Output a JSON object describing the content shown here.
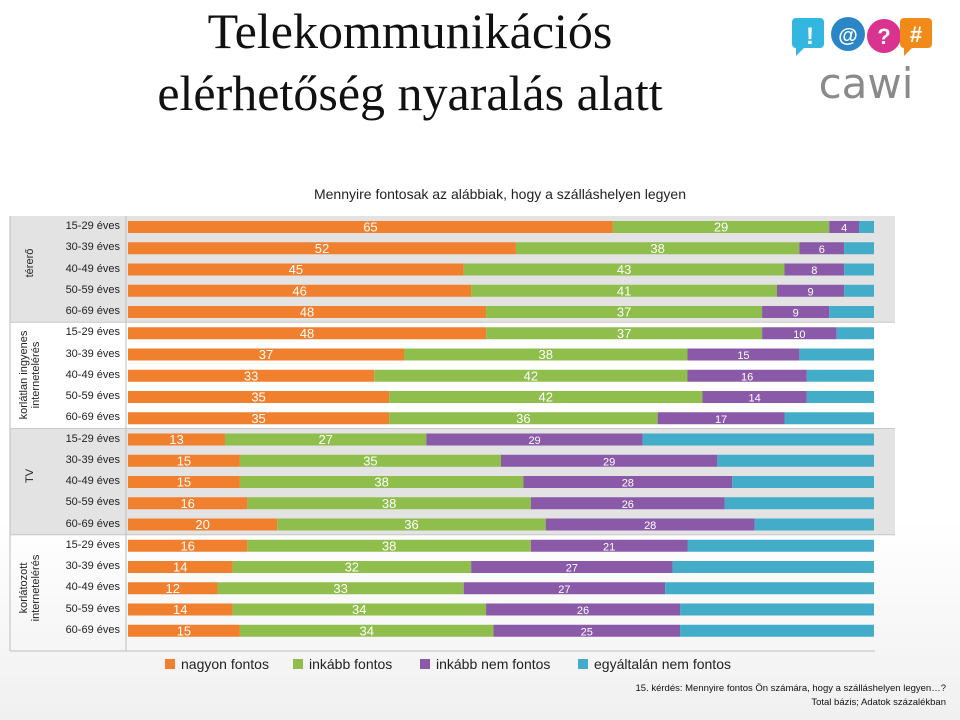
{
  "slide": {
    "title_line1": "Telekommunikációs",
    "title_line2": "elérhetőség nyaralás alatt",
    "logo_text": "cawi",
    "logo_symbols": [
      "!",
      "@",
      "?",
      "#"
    ],
    "logo_colors": [
      "#33b6e0",
      "#2b86c8",
      "#d9338f",
      "#f28a1a"
    ]
  },
  "footnote": {
    "line1": "15. kérdés: Mennyire fontos Ön számára, hogy a szálláshelyen legyen…?",
    "line2": "Total bázis; Adatok százalékban"
  },
  "chart_data": {
    "type": "bar",
    "orientation": "horizontal",
    "stacked": true,
    "title": "Mennyire fontosak az alábbiak, hogy a szálláshelyen legyen",
    "xlim": [
      0,
      100
    ],
    "legend_position": "bottom",
    "series_names": [
      "nagyon fontos",
      "inkább fontos",
      "inkább nem fontos",
      "egyáltalán nem fontos"
    ],
    "colors": [
      "#f07f2e",
      "#8fbe4c",
      "#8a5aa8",
      "#43acc8"
    ],
    "groups": [
      {
        "name": "térerő",
        "shaded": true,
        "rows": [
          {
            "label": "15-29 éves",
            "values": [
              65,
              29,
              4,
              2
            ]
          },
          {
            "label": "30-39 éves",
            "values": [
              52,
              38,
              6,
              4
            ]
          },
          {
            "label": "40-49 éves",
            "values": [
              45,
              43,
              8,
              4
            ]
          },
          {
            "label": "50-59 éves",
            "values": [
              46,
              41,
              9,
              4
            ]
          },
          {
            "label": "60-69 éves",
            "values": [
              48,
              37,
              9,
              6
            ]
          }
        ]
      },
      {
        "name": "korlátlan ingyenes internetelérés",
        "shaded": false,
        "rows": [
          {
            "label": "15-29 éves",
            "values": [
              48,
              37,
              10,
              5
            ]
          },
          {
            "label": "30-39 éves",
            "values": [
              37,
              38,
              15,
              10
            ]
          },
          {
            "label": "40-49 éves",
            "values": [
              33,
              42,
              16,
              9
            ]
          },
          {
            "label": "50-59 éves",
            "values": [
              35,
              42,
              14,
              9
            ]
          },
          {
            "label": "60-69 éves",
            "values": [
              35,
              36,
              17,
              12
            ]
          }
        ]
      },
      {
        "name": "TV",
        "shaded": true,
        "rows": [
          {
            "label": "15-29 éves",
            "values": [
              13,
              27,
              29,
              31
            ]
          },
          {
            "label": "30-39 éves",
            "values": [
              15,
              35,
              29,
              21
            ]
          },
          {
            "label": "40-49 éves",
            "values": [
              15,
              38,
              28,
              19
            ]
          },
          {
            "label": "50-59 éves",
            "values": [
              16,
              38,
              26,
              20
            ]
          },
          {
            "label": "60-69 éves",
            "values": [
              20,
              36,
              28,
              16
            ]
          }
        ]
      },
      {
        "name": "korlátozott internetelérés",
        "shaded": false,
        "rows": [
          {
            "label": "15-29 éves",
            "values": [
              16,
              38,
              21,
              25
            ]
          },
          {
            "label": "30-39 éves",
            "values": [
              14,
              32,
              27,
              27
            ]
          },
          {
            "label": "40-49 éves",
            "values": [
              12,
              33,
              27,
              28
            ]
          },
          {
            "label": "50-59 éves",
            "values": [
              14,
              34,
              26,
              26
            ]
          },
          {
            "label": "60-69 éves",
            "values": [
              15,
              34,
              25,
              26
            ]
          }
        ]
      }
    ],
    "labeled_series": [
      0,
      1,
      2
    ]
  }
}
